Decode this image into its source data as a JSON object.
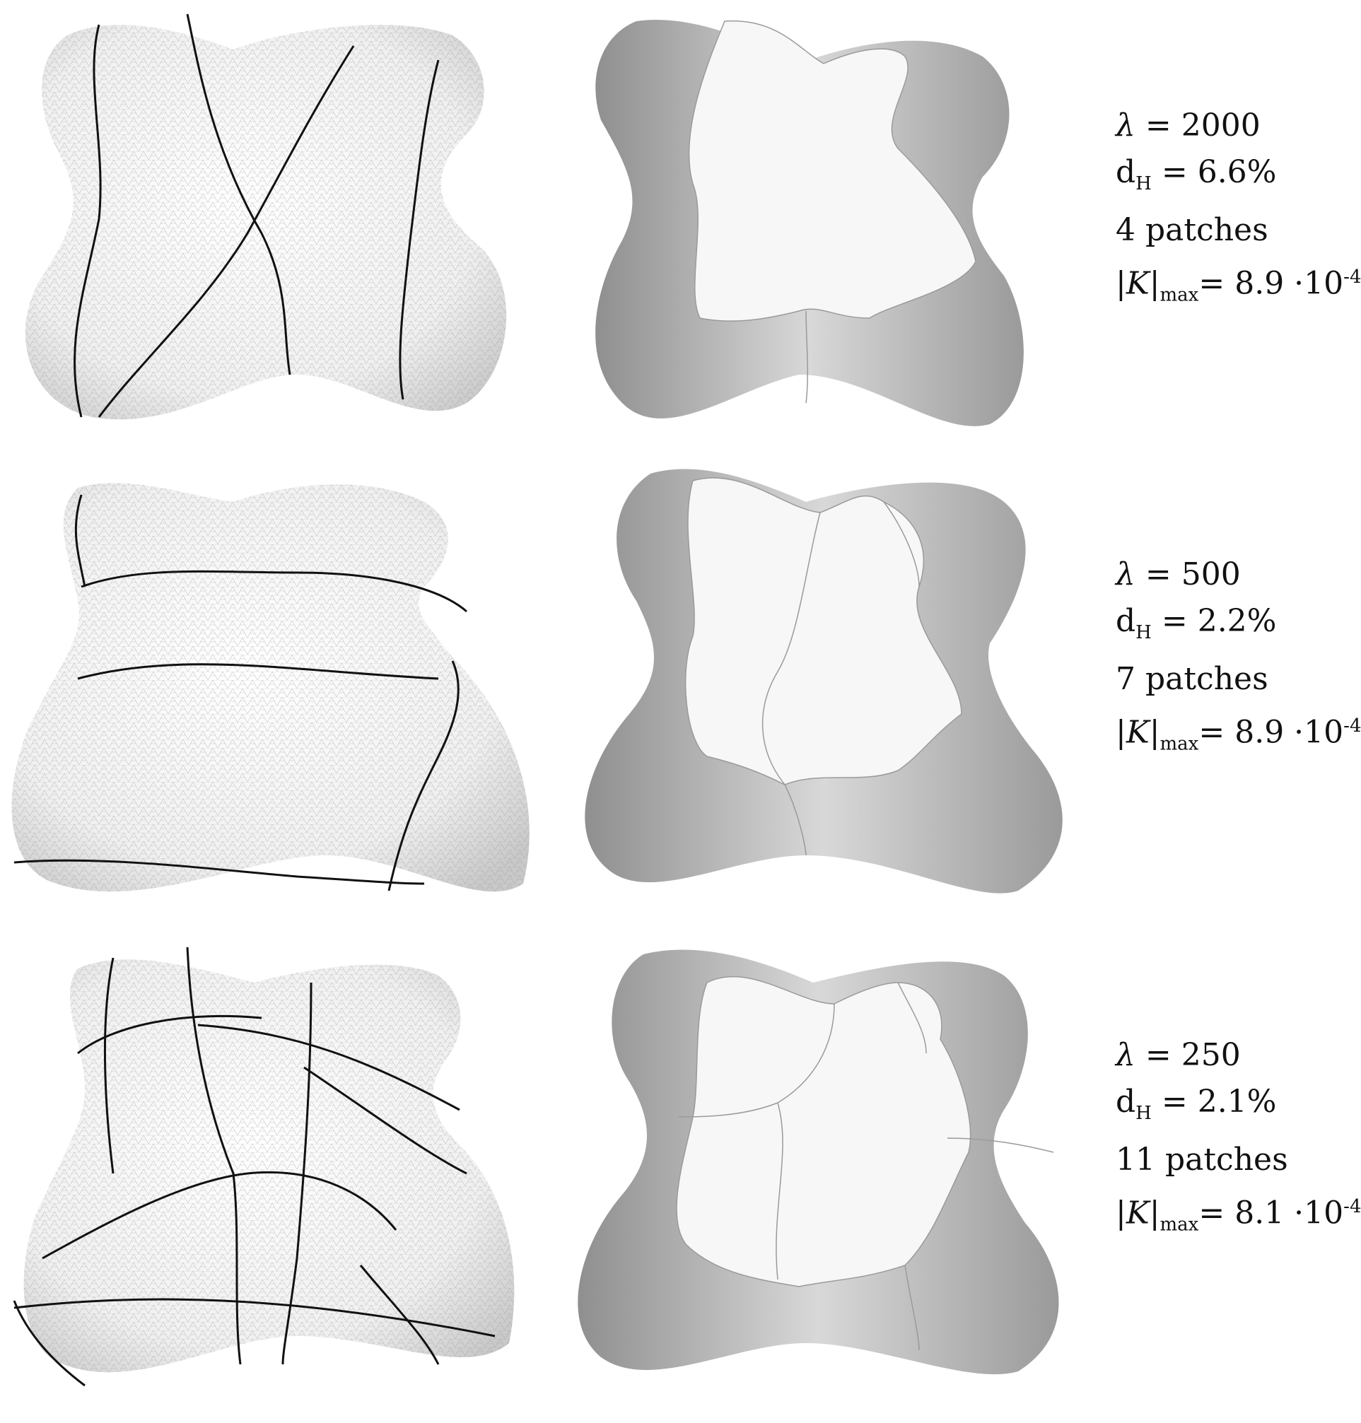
{
  "figure": {
    "rows": [
      {
        "lambda": "2000",
        "dH": "6.6%",
        "patches": "4 patches",
        "Kmax": "8.9 ·10",
        "Kexp": "-4"
      },
      {
        "lambda": "500",
        "dH": "2.2%",
        "patches": "7 patches",
        "Kmax": "8.9 ·10",
        "Kexp": "-4"
      },
      {
        "lambda": "250",
        "dH": "2.1%",
        "patches": "11 patches",
        "Kmax": "8.1 ·10",
        "Kexp": "-4"
      }
    ],
    "labels": {
      "lambda_symbol": "λ",
      "equals": " = ",
      "d_symbol": "d",
      "d_sub": "H",
      "K_prefix": "|K|",
      "K_sub": "max",
      "K_equals": "= "
    }
  }
}
